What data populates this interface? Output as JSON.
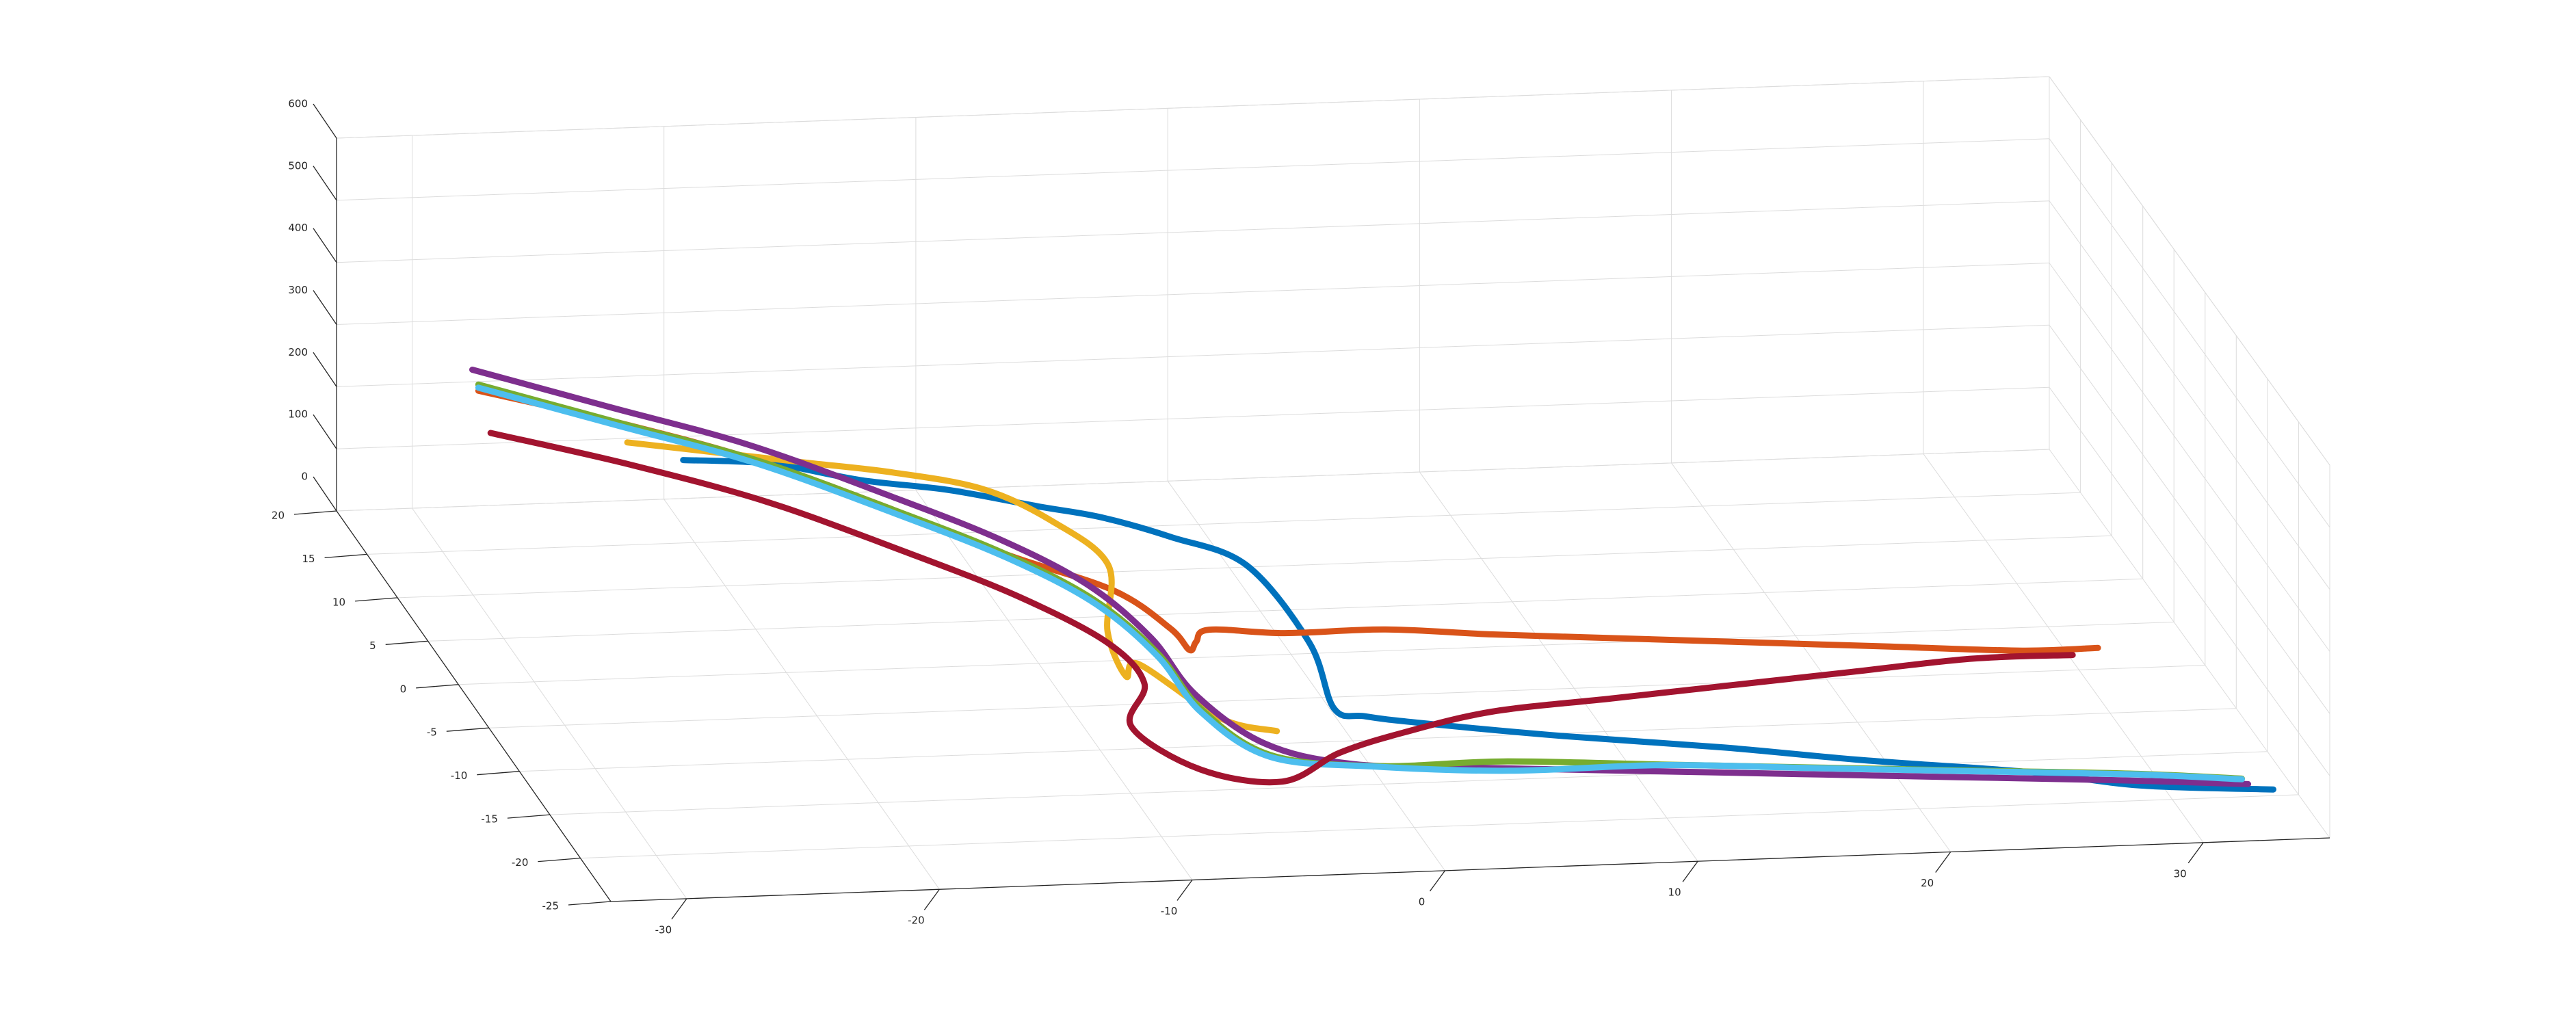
{
  "chart_data": {
    "type": "line",
    "view": "3d",
    "grid": true,
    "x_ticks": [
      -30,
      -20,
      -10,
      0,
      10,
      20,
      30
    ],
    "y_ticks": [
      -25,
      -20,
      -15,
      -10,
      -5,
      0,
      5,
      10,
      15,
      20
    ],
    "z_ticks": [
      0,
      100,
      200,
      300,
      400,
      500,
      600
    ],
    "xlim": [
      -33,
      35
    ],
    "ylim": [
      -25,
      20
    ],
    "zlim": [
      0,
      600
    ],
    "series": [
      {
        "color": "#0072BD",
        "points": [
          [
            -27,
            -12,
            520
          ],
          [
            -23,
            -10,
            480
          ],
          [
            -19,
            -8,
            420
          ],
          [
            -15,
            -6,
            370
          ],
          [
            -11,
            -4,
            310
          ],
          [
            -8,
            -2,
            260
          ],
          [
            -5,
            -1,
            210
          ],
          [
            -2,
            -1,
            160
          ],
          [
            0,
            -3,
            60
          ],
          [
            0,
            -7,
            10
          ],
          [
            1,
            -8,
            10
          ],
          [
            3,
            -9,
            10
          ],
          [
            8,
            -11,
            10
          ],
          [
            14,
            -13,
            10
          ],
          [
            19,
            -15,
            10
          ],
          [
            25,
            -17,
            10
          ],
          [
            29,
            -19,
            10
          ],
          [
            34,
            -20,
            10
          ]
        ]
      },
      {
        "color": "#D95319",
        "points": [
          [
            -31,
            5,
            400
          ],
          [
            -26,
            3,
            370
          ],
          [
            -21,
            1,
            330
          ],
          [
            -16,
            -1,
            270
          ],
          [
            -12,
            -3,
            220
          ],
          [
            -8,
            -4,
            170
          ],
          [
            -6,
            -5,
            120
          ],
          [
            -5,
            -4,
            70
          ],
          [
            -4,
            -1,
            40
          ],
          [
            -3,
            1,
            30
          ],
          [
            0,
            1,
            20
          ],
          [
            4,
            1,
            20
          ],
          [
            8,
            0,
            20
          ],
          [
            13,
            -1,
            20
          ],
          [
            18,
            -2,
            20
          ],
          [
            23,
            -3,
            20
          ],
          [
            28,
            -4,
            20
          ],
          [
            31,
            -4,
            20
          ]
        ]
      },
      {
        "color": "#EDB120",
        "points": [
          [
            -28,
            -7,
            480
          ],
          [
            -24,
            -5,
            430
          ],
          [
            -20,
            -3,
            380
          ],
          [
            -16,
            -1,
            330
          ],
          [
            -12,
            1,
            270
          ],
          [
            -9,
            2,
            200
          ],
          [
            -7,
            1,
            140
          ],
          [
            -8,
            -3,
            90
          ],
          [
            -8,
            -6,
            60
          ],
          [
            -7,
            -4,
            50
          ],
          [
            -5,
            -9,
            30
          ],
          [
            -3,
            -10,
            20
          ]
        ]
      },
      {
        "color": "#7E2F8E",
        "points": [
          [
            -31,
            6,
            420
          ],
          [
            -26,
            4,
            380
          ],
          [
            -21,
            2,
            340
          ],
          [
            -16,
            0,
            280
          ],
          [
            -12,
            -2,
            230
          ],
          [
            -9,
            -4,
            180
          ],
          [
            -7,
            -6,
            120
          ],
          [
            -6,
            -9,
            70
          ],
          [
            -4,
            -12,
            30
          ],
          [
            -1,
            -14,
            20
          ],
          [
            4,
            -15,
            20
          ],
          [
            10,
            -16,
            20
          ],
          [
            16,
            -17,
            20
          ],
          [
            22,
            -18,
            20
          ],
          [
            28,
            -19,
            20
          ],
          [
            33,
            -20,
            20
          ]
        ]
      },
      {
        "color": "#77AC30",
        "points": [
          [
            -31,
            5,
            410
          ],
          [
            -26,
            3,
            370
          ],
          [
            -21,
            1,
            330
          ],
          [
            -16,
            -1,
            270
          ],
          [
            -12,
            -3,
            220
          ],
          [
            -9,
            -5,
            170
          ],
          [
            -7,
            -7,
            110
          ],
          [
            -6,
            -10,
            60
          ],
          [
            -4,
            -13,
            25
          ],
          [
            0,
            -14,
            15
          ],
          [
            5,
            -14,
            15
          ],
          [
            11,
            -15,
            15
          ],
          [
            17,
            -16,
            15
          ],
          [
            23,
            -17,
            15
          ],
          [
            29,
            -18,
            15
          ],
          [
            33,
            -19,
            15
          ]
        ]
      },
      {
        "color": "#4DBEEE",
        "points": [
          [
            -31,
            5,
            405
          ],
          [
            -26,
            3,
            365
          ],
          [
            -21,
            1,
            325
          ],
          [
            -16,
            -1,
            265
          ],
          [
            -12,
            -3,
            215
          ],
          [
            -9,
            -5,
            165
          ],
          [
            -7,
            -7,
            105
          ],
          [
            -6,
            -10,
            55
          ],
          [
            -4,
            -13,
            22
          ],
          [
            0,
            -14,
            14
          ],
          [
            5,
            -15,
            14
          ],
          [
            11,
            -15,
            14
          ],
          [
            17,
            -16,
            14
          ],
          [
            23,
            -17,
            14
          ],
          [
            29,
            -18,
            14
          ],
          [
            33,
            -19,
            14
          ]
        ]
      },
      {
        "color": "#A2142F",
        "points": [
          [
            -31,
            3,
            360
          ],
          [
            -26,
            1,
            330
          ],
          [
            -21,
            -1,
            290
          ],
          [
            -16,
            -3,
            230
          ],
          [
            -12,
            -5,
            180
          ],
          [
            -9,
            -7,
            130
          ],
          [
            -8,
            -9,
            90
          ],
          [
            -9,
            -11,
            50
          ],
          [
            -7,
            -14,
            20
          ],
          [
            -4,
            -15,
            10
          ],
          [
            -1,
            -12,
            10
          ],
          [
            2,
            -10,
            10
          ],
          [
            6,
            -8,
            10
          ],
          [
            11,
            -7,
            10
          ],
          [
            16,
            -6,
            10
          ],
          [
            21,
            -5,
            10
          ],
          [
            26,
            -4,
            10
          ],
          [
            30,
            -4,
            10
          ]
        ]
      }
    ]
  }
}
